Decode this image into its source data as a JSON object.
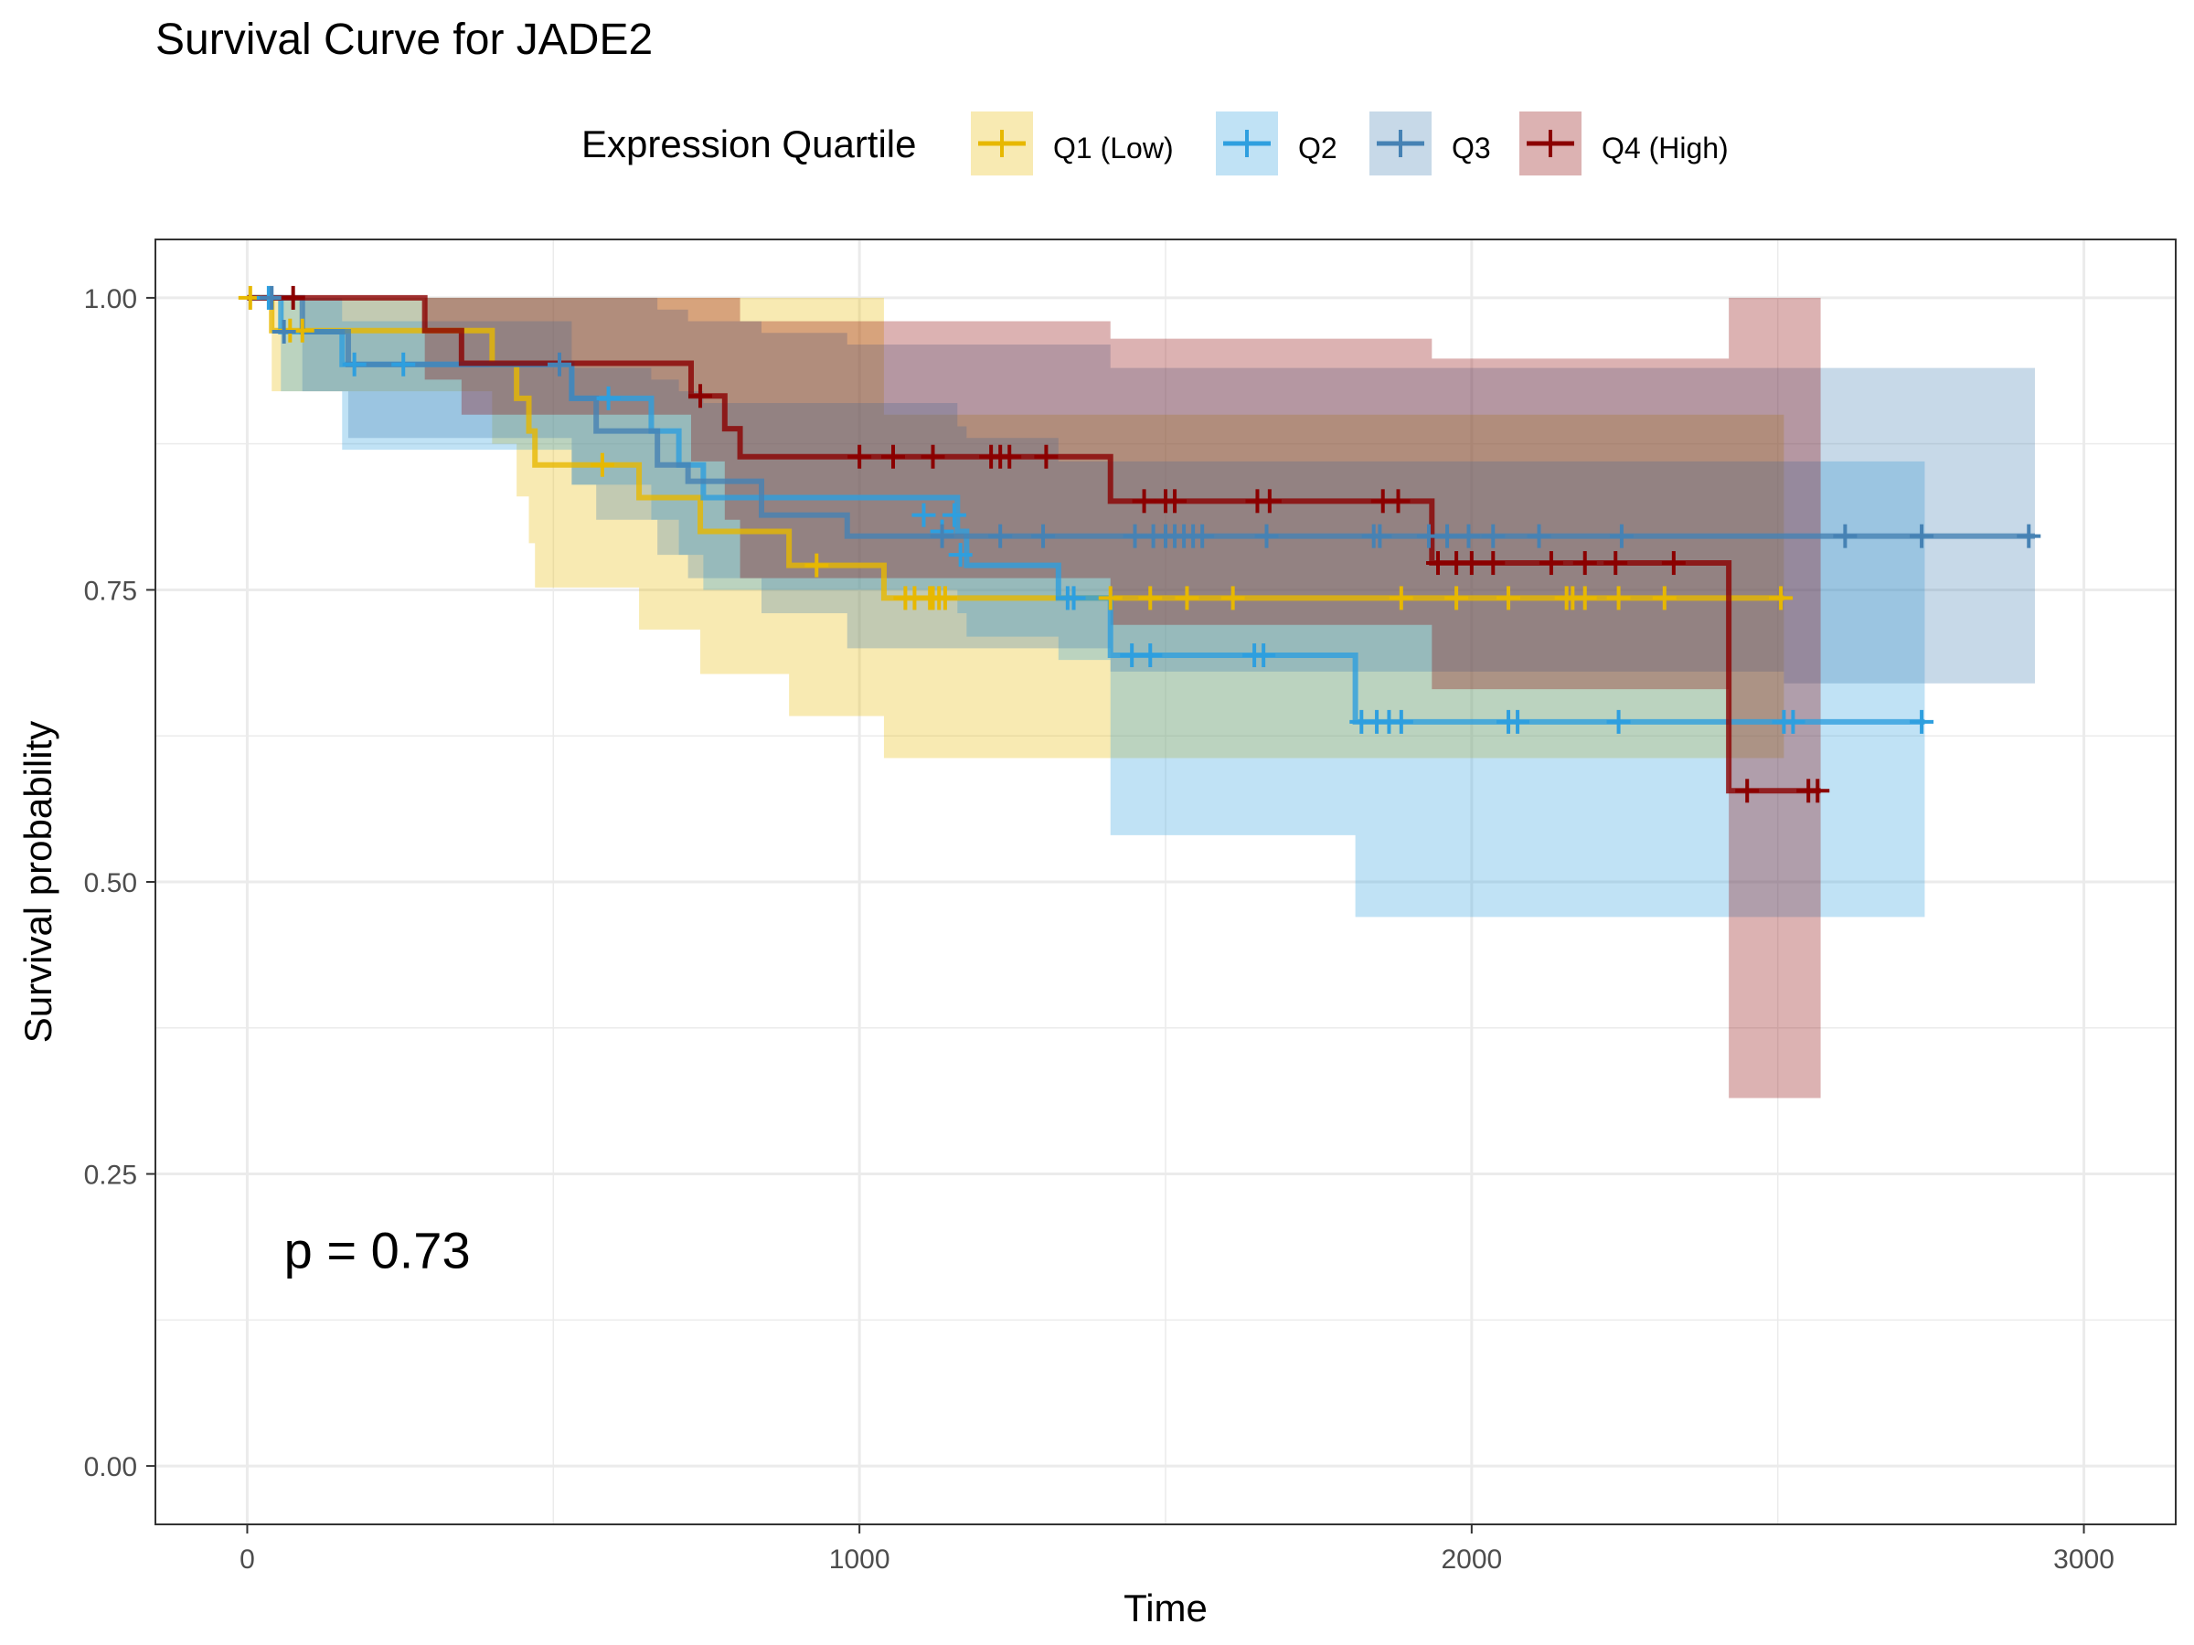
{
  "title": "Survival Curve for JADE2",
  "legend": {
    "title": "Expression Quartile",
    "items": [
      {
        "label": "Q1 (Low)",
        "color": "#E7B800"
      },
      {
        "label": "Q2",
        "color": "#2E9FDF"
      },
      {
        "label": "Q3",
        "color": "#4682B4"
      },
      {
        "label": "Q4 (High)",
        "color": "#8B0000"
      }
    ],
    "placement": "top"
  },
  "chart_data": {
    "type": "line",
    "subtype": "kaplan-meier step curves with confidence bands",
    "title": "Survival Curve for JADE2",
    "xlabel": "Time",
    "ylabel": "Survival probability",
    "xlim": [
      -150,
      3150
    ],
    "ylim": [
      -0.05,
      1.05
    ],
    "xticks": [
      0,
      1000,
      2000,
      3000
    ],
    "yticks": [
      0.0,
      0.25,
      0.5,
      0.75,
      1.0
    ],
    "xtick_labels": [
      "0",
      "1000",
      "2000",
      "3000"
    ],
    "ytick_labels": [
      "0.00",
      "0.25",
      "0.50",
      "0.75",
      "1.00"
    ],
    "grid": true,
    "annotation": "p = 0.73",
    "series": [
      {
        "name": "Q1 (Low)",
        "color": "#E7B800",
        "steps": [
          [
            0,
            1.0
          ],
          [
            40,
            0.972
          ],
          [
            400,
            0.943
          ],
          [
            440,
            0.914
          ],
          [
            460,
            0.886
          ],
          [
            470,
            0.857
          ],
          [
            640,
            0.829
          ],
          [
            740,
            0.8
          ],
          [
            885,
            0.771
          ],
          [
            1040,
            0.743
          ],
          [
            2510,
            0.743
          ]
        ],
        "upper": [
          [
            0,
            1.0
          ],
          [
            40,
            1.0
          ],
          [
            400,
            1.0
          ],
          [
            440,
            1.0
          ],
          [
            460,
            1.0
          ],
          [
            470,
            1.0
          ],
          [
            640,
            1.0
          ],
          [
            740,
            1.0
          ],
          [
            885,
            1.0
          ],
          [
            1040,
            0.9
          ],
          [
            2510,
            0.9
          ]
        ],
        "lower": [
          [
            0,
            1.0
          ],
          [
            40,
            0.92
          ],
          [
            400,
            0.875
          ],
          [
            440,
            0.83
          ],
          [
            460,
            0.79
          ],
          [
            470,
            0.752
          ],
          [
            640,
            0.716
          ],
          [
            740,
            0.678
          ],
          [
            885,
            0.642
          ],
          [
            1040,
            0.606
          ],
          [
            2510,
            0.606
          ]
        ],
        "censor": [
          [
            5,
            1.0
          ],
          [
            70,
            0.972
          ],
          [
            90,
            0.972
          ],
          [
            580,
            0.857
          ],
          [
            930,
            0.771
          ],
          [
            1075,
            0.743
          ],
          [
            1090,
            0.743
          ],
          [
            1115,
            0.743
          ],
          [
            1120,
            0.743
          ],
          [
            1130,
            0.743
          ],
          [
            1140,
            0.743
          ],
          [
            1410,
            0.743
          ],
          [
            1475,
            0.743
          ],
          [
            1535,
            0.743
          ],
          [
            1610,
            0.743
          ],
          [
            1885,
            0.743
          ],
          [
            1975,
            0.743
          ],
          [
            2060,
            0.743
          ],
          [
            2155,
            0.743
          ],
          [
            2165,
            0.743
          ],
          [
            2185,
            0.743
          ],
          [
            2240,
            0.743
          ],
          [
            2315,
            0.743
          ],
          [
            2505,
            0.743
          ]
        ]
      },
      {
        "name": "Q2",
        "color": "#2E9FDF",
        "steps": [
          [
            0,
            1.0
          ],
          [
            55,
            0.971
          ],
          [
            155,
            0.943
          ],
          [
            530,
            0.914
          ],
          [
            660,
            0.886
          ],
          [
            705,
            0.857
          ],
          [
            745,
            0.829
          ],
          [
            1160,
            0.8
          ],
          [
            1175,
            0.771
          ],
          [
            1325,
            0.743
          ],
          [
            1410,
            0.694
          ],
          [
            1810,
            0.637
          ],
          [
            2740,
            0.637
          ]
        ],
        "upper": [
          [
            0,
            1.0
          ],
          [
            55,
            1.0
          ],
          [
            155,
            0.98
          ],
          [
            530,
            0.94
          ],
          [
            660,
            0.93
          ],
          [
            705,
            0.92
          ],
          [
            745,
            0.91
          ],
          [
            1160,
            0.89
          ],
          [
            1175,
            0.88
          ],
          [
            1325,
            0.86
          ],
          [
            1410,
            0.86
          ],
          [
            1810,
            0.86
          ],
          [
            2740,
            0.86
          ]
        ],
        "lower": [
          [
            0,
            1.0
          ],
          [
            55,
            0.92
          ],
          [
            155,
            0.87
          ],
          [
            530,
            0.84
          ],
          [
            660,
            0.81
          ],
          [
            705,
            0.78
          ],
          [
            745,
            0.75
          ],
          [
            1160,
            0.73
          ],
          [
            1175,
            0.71
          ],
          [
            1325,
            0.69
          ],
          [
            1410,
            0.54
          ],
          [
            1810,
            0.47
          ],
          [
            2740,
            0.47
          ]
        ],
        "censor": [
          [
            35,
            1.0
          ],
          [
            175,
            0.943
          ],
          [
            255,
            0.943
          ],
          [
            590,
            0.914
          ],
          [
            1105,
            0.814
          ],
          [
            1135,
            0.8
          ],
          [
            1155,
            0.814
          ],
          [
            1165,
            0.78
          ],
          [
            1340,
            0.743
          ],
          [
            1350,
            0.743
          ],
          [
            1445,
            0.694
          ],
          [
            1475,
            0.694
          ],
          [
            1645,
            0.694
          ],
          [
            1660,
            0.694
          ],
          [
            1820,
            0.637
          ],
          [
            1845,
            0.637
          ],
          [
            1865,
            0.637
          ],
          [
            1885,
            0.637
          ],
          [
            2060,
            0.637
          ],
          [
            2075,
            0.637
          ],
          [
            2240,
            0.637
          ],
          [
            2510,
            0.637
          ],
          [
            2525,
            0.637
          ],
          [
            2735,
            0.637
          ]
        ]
      },
      {
        "name": "Q3",
        "color": "#4682B4",
        "steps": [
          [
            0,
            1.0
          ],
          [
            90,
            0.971
          ],
          [
            165,
            0.943
          ],
          [
            530,
            0.914
          ],
          [
            570,
            0.886
          ],
          [
            670,
            0.857
          ],
          [
            720,
            0.843
          ],
          [
            840,
            0.814
          ],
          [
            980,
            0.796
          ],
          [
            2920,
            0.796
          ]
        ],
        "upper": [
          [
            0,
            1.0
          ],
          [
            90,
            1.0
          ],
          [
            165,
            1.0
          ],
          [
            530,
            1.0
          ],
          [
            570,
            1.0
          ],
          [
            670,
            0.99
          ],
          [
            720,
            0.98
          ],
          [
            840,
            0.97
          ],
          [
            980,
            0.96
          ],
          [
            1410,
            0.94
          ],
          [
            2510,
            0.94
          ],
          [
            2920,
            0.94
          ]
        ],
        "lower": [
          [
            0,
            1.0
          ],
          [
            90,
            0.92
          ],
          [
            165,
            0.88
          ],
          [
            530,
            0.84
          ],
          [
            570,
            0.81
          ],
          [
            670,
            0.78
          ],
          [
            720,
            0.76
          ],
          [
            840,
            0.73
          ],
          [
            980,
            0.7
          ],
          [
            1410,
            0.68
          ],
          [
            2510,
            0.67
          ],
          [
            2920,
            0.67
          ]
        ],
        "censor": [
          [
            40,
            1.0
          ],
          [
            60,
            0.971
          ],
          [
            510,
            0.943
          ],
          [
            1135,
            0.796
          ],
          [
            1230,
            0.796
          ],
          [
            1300,
            0.796
          ],
          [
            1450,
            0.796
          ],
          [
            1480,
            0.796
          ],
          [
            1500,
            0.796
          ],
          [
            1515,
            0.796
          ],
          [
            1530,
            0.796
          ],
          [
            1545,
            0.796
          ],
          [
            1560,
            0.796
          ],
          [
            1665,
            0.796
          ],
          [
            1840,
            0.796
          ],
          [
            1850,
            0.796
          ],
          [
            1930,
            0.796
          ],
          [
            1960,
            0.796
          ],
          [
            1995,
            0.796
          ],
          [
            2035,
            0.796
          ],
          [
            2110,
            0.796
          ],
          [
            2245,
            0.796
          ],
          [
            2610,
            0.796
          ],
          [
            2735,
            0.796
          ],
          [
            2910,
            0.796
          ]
        ]
      },
      {
        "name": "Q4 (High)",
        "color": "#8B0000",
        "steps": [
          [
            0,
            1.0
          ],
          [
            290,
            0.972
          ],
          [
            350,
            0.944
          ],
          [
            725,
            0.916
          ],
          [
            780,
            0.888
          ],
          [
            805,
            0.864
          ],
          [
            1410,
            0.826
          ],
          [
            1935,
            0.773
          ],
          [
            2420,
            0.578
          ],
          [
            2570,
            0.578
          ]
        ],
        "upper": [
          [
            0,
            1.0
          ],
          [
            290,
            1.0
          ],
          [
            350,
            1.0
          ],
          [
            725,
            1.0
          ],
          [
            780,
            1.0
          ],
          [
            805,
            0.98
          ],
          [
            1410,
            0.965
          ],
          [
            1935,
            0.948
          ],
          [
            2420,
            1.0
          ],
          [
            2570,
            1.0
          ]
        ],
        "lower": [
          [
            0,
            1.0
          ],
          [
            290,
            0.93
          ],
          [
            350,
            0.9
          ],
          [
            725,
            0.86
          ],
          [
            780,
            0.81
          ],
          [
            805,
            0.76
          ],
          [
            1410,
            0.72
          ],
          [
            1935,
            0.665
          ],
          [
            2420,
            0.315
          ],
          [
            2570,
            0.315
          ]
        ],
        "censor": [
          [
            75,
            1.0
          ],
          [
            740,
            0.916
          ],
          [
            1000,
            0.864
          ],
          [
            1055,
            0.864
          ],
          [
            1120,
            0.864
          ],
          [
            1215,
            0.864
          ],
          [
            1230,
            0.864
          ],
          [
            1245,
            0.864
          ],
          [
            1305,
            0.864
          ],
          [
            1465,
            0.826
          ],
          [
            1500,
            0.826
          ],
          [
            1515,
            0.826
          ],
          [
            1650,
            0.826
          ],
          [
            1670,
            0.826
          ],
          [
            1855,
            0.826
          ],
          [
            1880,
            0.826
          ],
          [
            1945,
            0.773
          ],
          [
            1975,
            0.773
          ],
          [
            2000,
            0.773
          ],
          [
            2035,
            0.773
          ],
          [
            2130,
            0.773
          ],
          [
            2185,
            0.773
          ],
          [
            2235,
            0.773
          ],
          [
            2330,
            0.773
          ],
          [
            2450,
            0.578
          ],
          [
            2550,
            0.578
          ],
          [
            2565,
            0.578
          ]
        ]
      }
    ]
  }
}
